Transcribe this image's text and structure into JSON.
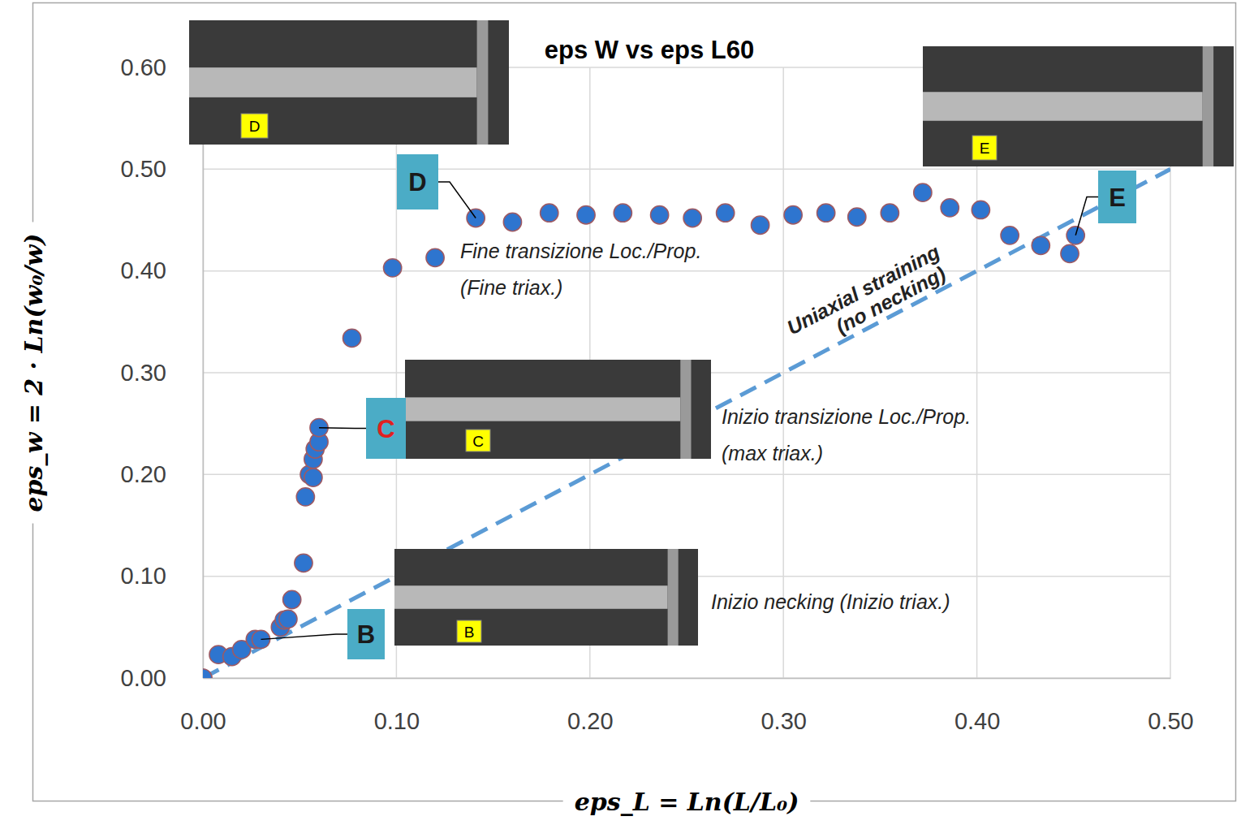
{
  "chart_data": {
    "type": "scatter",
    "title": "eps W vs eps L60",
    "x_label": "eps_L = Ln(L/L₀)",
    "y_label": "eps_w = 2 · Ln(w₀/w)",
    "xlim": [
      0,
      0.5
    ],
    "ylim": [
      0,
      0.6
    ],
    "xticks": [
      {
        "value": 0,
        "label": "0.00"
      },
      {
        "value": 0.1,
        "label": "0.10"
      },
      {
        "value": 0.2,
        "label": "0.20"
      },
      {
        "value": 0.3,
        "label": "0.30"
      },
      {
        "value": 0.4,
        "label": "0.40"
      },
      {
        "value": 0.5,
        "label": "0.50"
      }
    ],
    "yticks": [
      {
        "value": 0,
        "label": "0.00"
      },
      {
        "value": 0.1,
        "label": "0.10"
      },
      {
        "value": 0.2,
        "label": "0.20"
      },
      {
        "value": 0.3,
        "label": "0.30"
      },
      {
        "value": 0.4,
        "label": "0.40"
      },
      {
        "value": 0.5,
        "label": "0.50"
      },
      {
        "value": 0.6,
        "label": "0.60"
      }
    ],
    "grid": true,
    "series": [
      {
        "type": "scatter",
        "marker": "circle",
        "color": "#2e75cf",
        "x": [
          0.0,
          0.008,
          0.015,
          0.02,
          0.027,
          0.03,
          0.04,
          0.042,
          0.044,
          0.046,
          0.052,
          0.053,
          0.055,
          0.057,
          0.057,
          0.058,
          0.06,
          0.06,
          0.077,
          0.098,
          0.12,
          0.141,
          0.16,
          0.179,
          0.198,
          0.217,
          0.236,
          0.253,
          0.27,
          0.288,
          0.305,
          0.322,
          0.338,
          0.355,
          0.372,
          0.386,
          0.402,
          0.417,
          0.433,
          0.448,
          0.451
        ],
        "values": [
          0.0,
          0.023,
          0.021,
          0.028,
          0.038,
          0.038,
          0.05,
          0.057,
          0.058,
          0.077,
          0.113,
          0.178,
          0.2,
          0.197,
          0.215,
          0.225,
          0.232,
          0.246,
          0.334,
          0.403,
          0.413,
          0.452,
          0.448,
          0.457,
          0.455,
          0.457,
          0.455,
          0.452,
          0.457,
          0.445,
          0.455,
          0.457,
          0.453,
          0.457,
          0.477,
          0.462,
          0.46,
          0.435,
          0.425,
          0.417,
          0.435
        ]
      },
      {
        "type": "line",
        "name": "Uniaxial straining (no necking)",
        "line_style": "dashed",
        "color": "#5b9bd5",
        "x": [
          0,
          0.5
        ],
        "values": [
          0,
          0.5
        ]
      }
    ],
    "annotations": [
      {
        "label": "B",
        "x": 0.03,
        "y": 0.038,
        "inset": "B",
        "text": [
          "Inizio necking (Inizio triax.)"
        ]
      },
      {
        "label": "C",
        "x": 0.06,
        "y": 0.246,
        "inset": "C",
        "text": [
          "Inizio transizione Loc./Prop.",
          "(max triax.)"
        ]
      },
      {
        "label": "D",
        "x": 0.141,
        "y": 0.452,
        "inset": "D",
        "text": [
          "Fine transizione Loc./Prop.",
          "(Fine triax.)"
        ]
      },
      {
        "label": "E",
        "x": 0.451,
        "y": 0.435,
        "inset": "E"
      }
    ]
  }
}
